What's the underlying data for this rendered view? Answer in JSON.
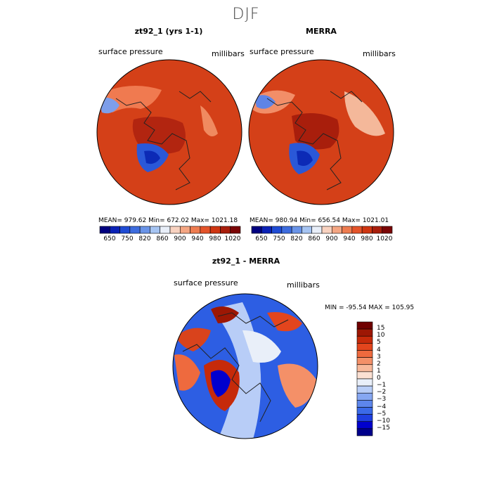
{
  "season": "DJF",
  "colors": {
    "abs_levels": [
      "#00007f",
      "#0b22b6",
      "#1f4bd4",
      "#3d6cde",
      "#6a94e8",
      "#a6c4f2",
      "#e8eef8",
      "#f8d2c0",
      "#f4a683",
      "#ee7c50",
      "#e4542a",
      "#cf3612",
      "#a81e0c",
      "#7a0505"
    ],
    "diff_levels": [
      "#00008b",
      "#0000cd",
      "#1f3fe0",
      "#3b6ae8",
      "#5d86ec",
      "#86a7f2",
      "#b8cdf7",
      "#e9eff9",
      "#fbe0d2",
      "#f8b99b",
      "#f49068",
      "#ee6a3e",
      "#e3451d",
      "#c62a0a",
      "#9d1704",
      "#700000"
    ],
    "map_background": "#d44018",
    "coastline": "#222222"
  },
  "panels": [
    {
      "title": "zt92_1 (yrs 1-1)",
      "variable": "surface pressure",
      "units": "millibars",
      "stats": "MEAN= 979.62   Min= 672.02   Max= 1021.18",
      "colorbar_ticks": [
        "650",
        "750",
        "820",
        "860",
        "900",
        "940",
        "980",
        "1020"
      ]
    },
    {
      "title": "MERRA",
      "variable": "surface pressure",
      "units": "millibars",
      "stats": "MEAN= 980.94   Min= 656.54   Max= 1021.01",
      "colorbar_ticks": [
        "650",
        "750",
        "820",
        "860",
        "900",
        "940",
        "980",
        "1020"
      ]
    }
  ],
  "diff_panel": {
    "title": "zt92_1 - MERRA",
    "variable": "surface pressure",
    "units": "millibars",
    "minmax": "MIN = -95.54  MAX = 105.95",
    "colorbar_ticks": [
      "15",
      "10",
      "5",
      "4",
      "3",
      "2",
      "1",
      "0",
      "−1",
      "−2",
      "−3",
      "−4",
      "−5",
      "−10",
      "−15"
    ]
  }
}
